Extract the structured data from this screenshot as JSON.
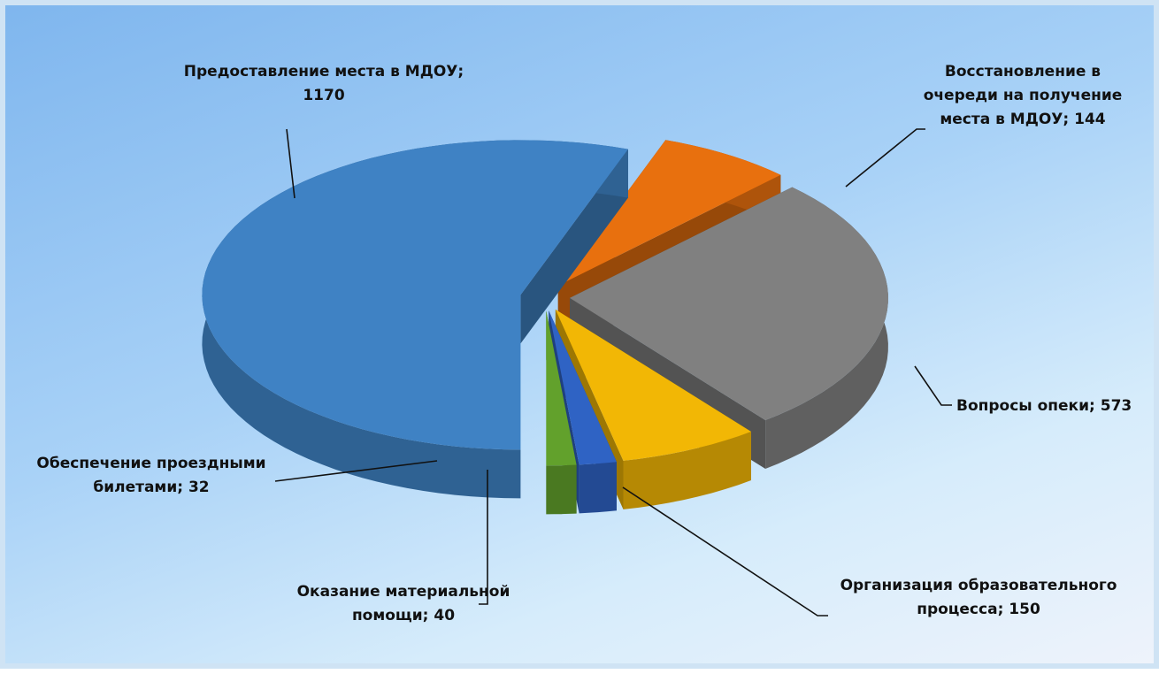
{
  "chart_data": {
    "type": "pie3d",
    "categories": [
      "Предоставление места в МДОУ",
      "Восстановление в очереди на получение места в МДОУ",
      "Вопросы опеки",
      "Организация образовательного процесса",
      "Оказание материальной помощи",
      "Обеспечение проездными билетами"
    ],
    "values": [
      1170,
      144,
      573,
      150,
      40,
      32
    ],
    "colors": [
      "#3f82c4",
      "#e8700e",
      "#808080",
      "#f2b705",
      "#2f63c4",
      "#62a12c"
    ],
    "label_separator": "; "
  }
}
